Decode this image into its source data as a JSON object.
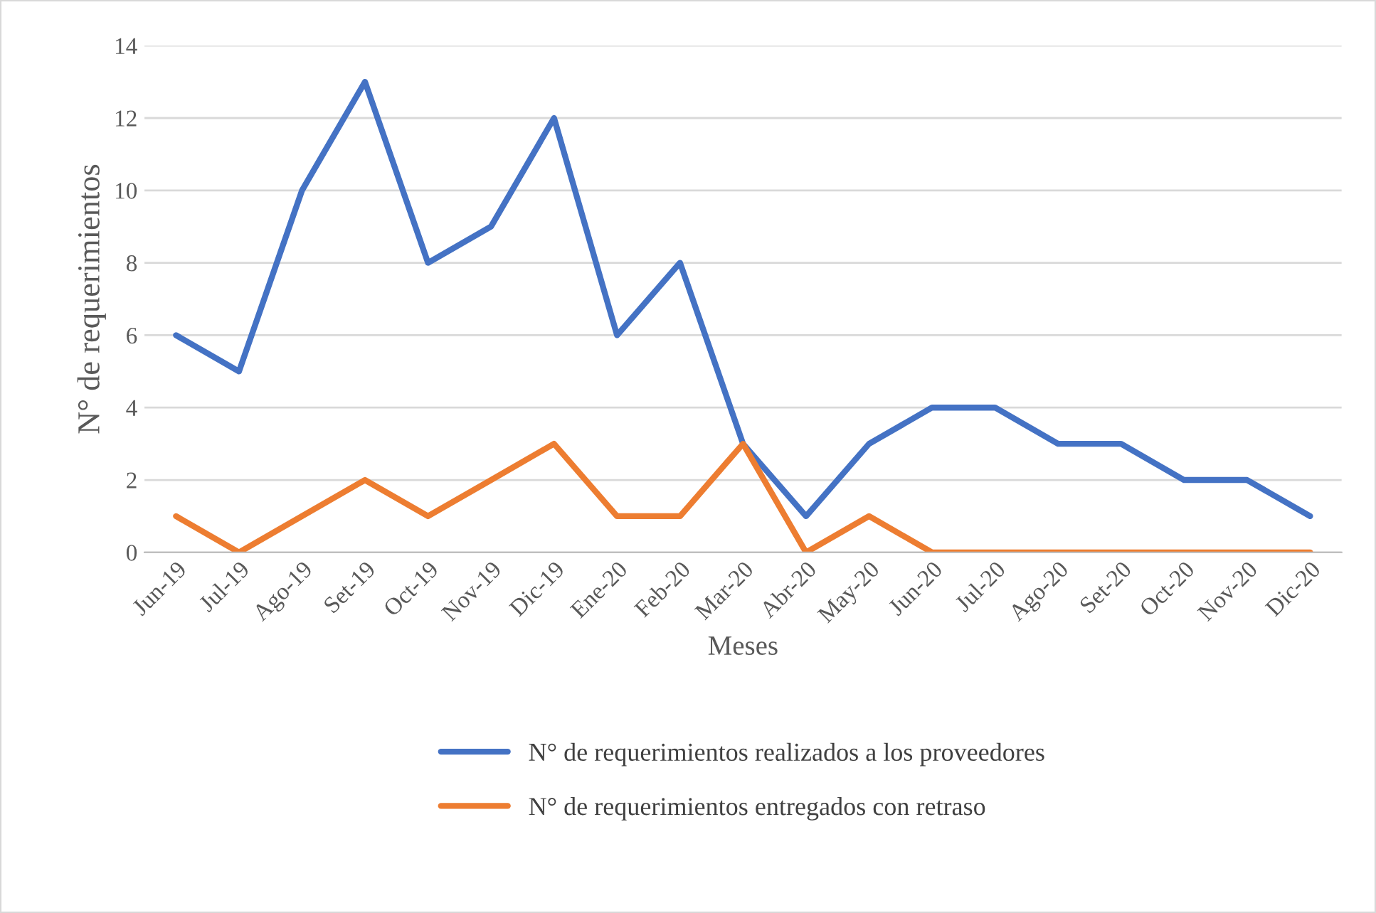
{
  "chart_data": {
    "type": "line",
    "xlabel": "Meses",
    "ylabel": "N° de requerimientos",
    "categories": [
      "Jun-19",
      "Jul-19",
      "Ago-19",
      "Set-19",
      "Oct-19",
      "Nov-19",
      "Dic-19",
      "Ene-20",
      "Feb-20",
      "Mar-20",
      "Abr-20",
      "May-20",
      "Jun-20",
      "Jul-20",
      "Ago-20",
      "Set-20",
      "Oct-20",
      "Nov-20",
      "Dic-20"
    ],
    "series": [
      {
        "name": "N° de requerimientos realizados a los proveedores",
        "color": "#4472c4",
        "values": [
          6,
          5,
          10,
          13,
          8,
          9,
          12,
          6,
          8,
          3,
          1,
          3,
          4,
          4,
          3,
          3,
          2,
          2,
          1
        ]
      },
      {
        "name": "N° de requerimientos entregados con retraso",
        "color": "#ed7d31",
        "values": [
          1,
          0,
          1,
          2,
          1,
          2,
          3,
          1,
          1,
          3,
          0,
          1,
          0,
          0,
          0,
          0,
          0,
          0,
          0
        ]
      }
    ],
    "ylim": [
      0,
      14
    ],
    "yticks": [
      0,
      2,
      4,
      6,
      8,
      10,
      12,
      14
    ],
    "grid": "y",
    "legend": "bottom",
    "marker": "none",
    "line_style": "solid"
  }
}
